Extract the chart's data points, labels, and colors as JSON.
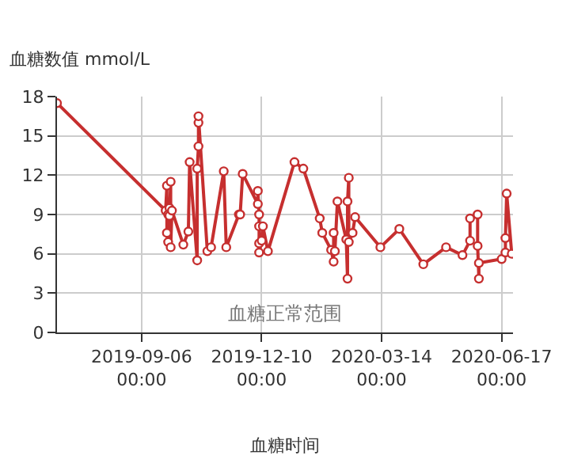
{
  "chart_data": {
    "type": "line",
    "ylabel": "血糖数值 mmol/L",
    "xlabel": "血糖时间",
    "annotations": [
      "血糖正常范围"
    ],
    "x": [
      "2019-07-01",
      "2019-09-25",
      "2019-09-26",
      "2019-09-26",
      "2019-09-27",
      "2019-09-27",
      "2019-09-28",
      "2019-09-28",
      "2019-09-29",
      "2019-09-29",
      "2019-09-30",
      "2019-10-09",
      "2019-10-13",
      "2019-10-14",
      "2019-10-20",
      "2019-10-20",
      "2019-10-21",
      "2019-10-21",
      "2019-10-21",
      "2019-10-28",
      "2019-10-31",
      "2019-11-10",
      "2019-11-12",
      "2019-11-22",
      "2019-11-23",
      "2019-11-25",
      "2019-12-07",
      "2019-12-07",
      "2019-12-08",
      "2019-12-08",
      "2019-12-08",
      "2019-12-08",
      "2019-12-10",
      "2019-12-11",
      "2019-12-15",
      "2020-01-05",
      "2020-01-12",
      "2020-01-25",
      "2020-01-27",
      "2020-02-03",
      "2020-02-05",
      "2020-02-05",
      "2020-02-06",
      "2020-02-08",
      "2020-02-15",
      "2020-02-16",
      "2020-02-16",
      "2020-02-17",
      "2020-02-17",
      "2020-02-20",
      "2020-02-22",
      "2020-03-13",
      "2020-03-28",
      "2020-04-16",
      "2020-05-04",
      "2020-05-17",
      "2020-05-23",
      "2020-05-23",
      "2020-05-29",
      "2020-05-29",
      "2020-05-30",
      "2020-05-30",
      "2020-06-17",
      "2020-06-20",
      "2020-06-20",
      "2020-06-21",
      "2020-06-25"
    ],
    "series": [
      {
        "color": "#c62f2f",
        "values": [
          17.5,
          9.3,
          11.2,
          7.6,
          6.9,
          9.0,
          9.5,
          8.9,
          11.5,
          6.5,
          9.3,
          6.7,
          7.7,
          13.0,
          5.5,
          12.5,
          14.2,
          16.0,
          16.5,
          6.2,
          6.5,
          12.3,
          6.5,
          9.0,
          9.0,
          12.1,
          9.8,
          10.8,
          9.0,
          8.1,
          6.8,
          6.1,
          7.0,
          8.1,
          6.2,
          13.0,
          12.5,
          8.7,
          7.6,
          6.3,
          5.4,
          7.6,
          6.2,
          10.0,
          7.1,
          4.1,
          10.0,
          11.8,
          6.9,
          7.6,
          8.8,
          6.5,
          7.9,
          5.2,
          6.5,
          5.9,
          7.0,
          8.7,
          9.0,
          6.6,
          4.1,
          5.3,
          5.6,
          6.1,
          7.2,
          10.6,
          6.0
        ]
      }
    ],
    "xlim": [
      "2019-07-01",
      "2020-06-26"
    ],
    "xticks": [
      {
        "value": "2019-09-06",
        "label": "2019-09-06\n00:00"
      },
      {
        "value": "2019-12-10",
        "label": "2019-12-10\n00:00"
      },
      {
        "value": "2020-03-14",
        "label": "2020-03-14\n00:00"
      },
      {
        "value": "2020-06-17",
        "label": "2020-06-17\n00:00"
      }
    ],
    "ylim": [
      0,
      18
    ],
    "yticks": [
      0,
      3,
      6,
      9,
      12,
      15,
      18
    ],
    "grid": true,
    "marker": "circle",
    "line_style": "solid"
  }
}
